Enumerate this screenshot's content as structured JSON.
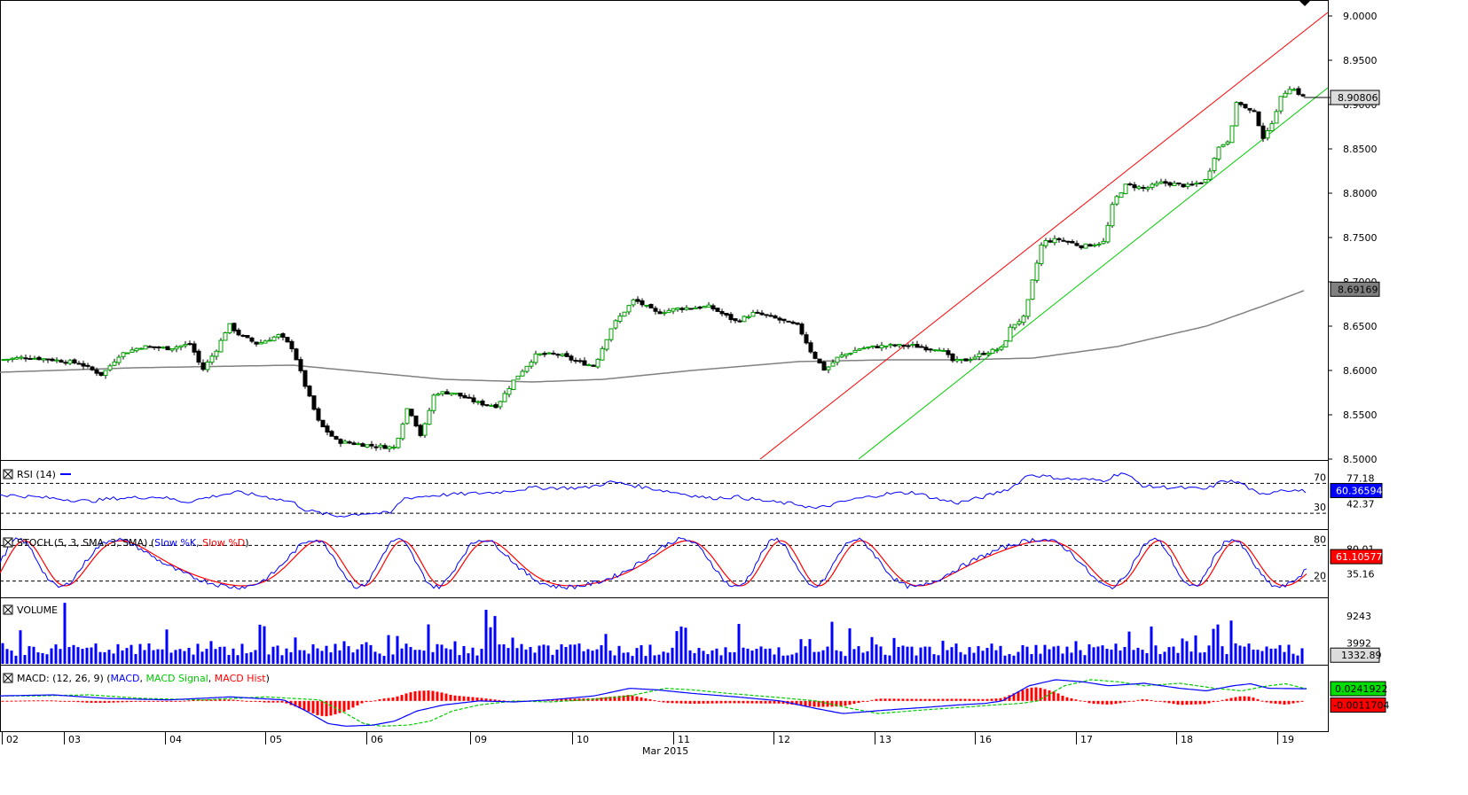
{
  "chart_data": {
    "type": "candlestick",
    "x_axis": {
      "ticks": [
        "02",
        "03",
        "04",
        "05",
        "06",
        "09",
        "10",
        "11",
        "12",
        "13",
        "16",
        "17",
        "18",
        "19"
      ],
      "month_label": "Mar 2015"
    },
    "price_panel": {
      "ylim": [
        8.5,
        9.0
      ],
      "tick_labels": [
        "9.0000",
        "8.9500",
        "8.9000",
        "8.8500",
        "8.8000",
        "8.7500",
        "8.7000",
        "8.6500",
        "8.6000",
        "8.5500",
        "8.5000"
      ],
      "last_price_tag": "8.90806",
      "ma_tag": "8.69169",
      "colors": {
        "up": "#00a000",
        "down": "#000000",
        "ma": "#808080",
        "channel_upper": "#ff0000",
        "channel_lower": "#00cc00"
      },
      "close_anchors": [
        [
          0,
          8.612
        ],
        [
          30,
          8.615
        ],
        [
          60,
          8.612
        ],
        [
          90,
          8.608
        ],
        [
          105,
          8.6
        ],
        [
          115,
          8.595
        ],
        [
          135,
          8.618
        ],
        [
          160,
          8.627
        ],
        [
          190,
          8.625
        ],
        [
          215,
          8.63
        ],
        [
          228,
          8.6
        ],
        [
          245,
          8.625
        ],
        [
          258,
          8.652
        ],
        [
          270,
          8.64
        ],
        [
          290,
          8.63
        ],
        [
          315,
          8.64
        ],
        [
          330,
          8.625
        ],
        [
          345,
          8.58
        ],
        [
          360,
          8.54
        ],
        [
          380,
          8.52
        ],
        [
          420,
          8.515
        ],
        [
          445,
          8.513
        ],
        [
          460,
          8.56
        ],
        [
          475,
          8.525
        ],
        [
          490,
          8.575
        ],
        [
          510,
          8.575
        ],
        [
          540,
          8.563
        ],
        [
          560,
          8.56
        ],
        [
          580,
          8.59
        ],
        [
          605,
          8.618
        ],
        [
          630,
          8.618
        ],
        [
          650,
          8.61
        ],
        [
          670,
          8.605
        ],
        [
          690,
          8.65
        ],
        [
          715,
          8.68
        ],
        [
          740,
          8.665
        ],
        [
          765,
          8.67
        ],
        [
          800,
          8.672
        ],
        [
          830,
          8.655
        ],
        [
          850,
          8.665
        ],
        [
          870,
          8.66
        ],
        [
          900,
          8.65
        ],
        [
          915,
          8.62
        ],
        [
          930,
          8.6
        ],
        [
          945,
          8.615
        ],
        [
          970,
          8.625
        ],
        [
          1000,
          8.628
        ],
        [
          1030,
          8.628
        ],
        [
          1045,
          8.625
        ],
        [
          1060,
          8.625
        ],
        [
          1075,
          8.61
        ],
        [
          1090,
          8.612
        ],
        [
          1110,
          8.62
        ],
        [
          1130,
          8.625
        ],
        [
          1140,
          8.65
        ],
        [
          1155,
          8.66
        ],
        [
          1165,
          8.705
        ],
        [
          1175,
          8.745
        ],
        [
          1195,
          8.748
        ],
        [
          1220,
          8.74
        ],
        [
          1245,
          8.745
        ],
        [
          1255,
          8.79
        ],
        [
          1270,
          8.81
        ],
        [
          1290,
          8.805
        ],
        [
          1310,
          8.812
        ],
        [
          1340,
          8.808
        ],
        [
          1360,
          8.815
        ],
        [
          1372,
          8.85
        ],
        [
          1385,
          8.86
        ],
        [
          1395,
          8.905
        ],
        [
          1405,
          8.895
        ],
        [
          1415,
          8.89
        ],
        [
          1425,
          8.86
        ],
        [
          1432,
          8.875
        ],
        [
          1445,
          8.91
        ],
        [
          1455,
          8.92
        ],
        [
          1470,
          8.908
        ]
      ],
      "ma_anchors": [
        [
          0,
          8.598
        ],
        [
          150,
          8.603
        ],
        [
          330,
          8.606
        ],
        [
          500,
          8.59
        ],
        [
          600,
          8.587
        ],
        [
          680,
          8.59
        ],
        [
          780,
          8.6
        ],
        [
          900,
          8.61
        ],
        [
          1000,
          8.612
        ],
        [
          1080,
          8.612
        ],
        [
          1165,
          8.614
        ],
        [
          1260,
          8.627
        ],
        [
          1360,
          8.65
        ],
        [
          1430,
          8.675
        ],
        [
          1475,
          8.692
        ],
        [
          1500,
          8.692
        ]
      ]
    },
    "rsi_panel": {
      "title": "RSI (14)",
      "levels": [
        70,
        30
      ],
      "level_labels": [
        "70",
        "30"
      ],
      "tick_labels": [
        "77.18",
        "42.37"
      ],
      "value_tag": "60.36594",
      "ylim": [
        10,
        100
      ],
      "anchors": [
        [
          0,
          55
        ],
        [
          60,
          50
        ],
        [
          100,
          46
        ],
        [
          130,
          50
        ],
        [
          180,
          52
        ],
        [
          210,
          45
        ],
        [
          250,
          55
        ],
        [
          270,
          58
        ],
        [
          300,
          52
        ],
        [
          330,
          45
        ],
        [
          345,
          34
        ],
        [
          380,
          26
        ],
        [
          410,
          30
        ],
        [
          440,
          30
        ],
        [
          455,
          50
        ],
        [
          490,
          54
        ],
        [
          560,
          58
        ],
        [
          600,
          64
        ],
        [
          660,
          64
        ],
        [
          690,
          72
        ],
        [
          720,
          66
        ],
        [
          760,
          58
        ],
        [
          800,
          50
        ],
        [
          830,
          52
        ],
        [
          870,
          45
        ],
        [
          900,
          42
        ],
        [
          920,
          36
        ],
        [
          960,
          48
        ],
        [
          1000,
          56
        ],
        [
          1030,
          58
        ],
        [
          1060,
          48
        ],
        [
          1080,
          44
        ],
        [
          1110,
          52
        ],
        [
          1140,
          64
        ],
        [
          1160,
          82
        ],
        [
          1200,
          76
        ],
        [
          1245,
          74
        ],
        [
          1265,
          85
        ],
        [
          1290,
          66
        ],
        [
          1330,
          64
        ],
        [
          1360,
          62
        ],
        [
          1380,
          74
        ],
        [
          1400,
          70
        ],
        [
          1420,
          54
        ],
        [
          1445,
          62
        ],
        [
          1475,
          59
        ]
      ]
    },
    "stoch_panel": {
      "title_prefix": "STOCH (5, 3, SMA, 3, SMA) (",
      "title_k": "Slow %K",
      "title_sep": ", ",
      "title_d": "Slow %D",
      "title_suffix": ")",
      "levels": [
        80,
        20
      ],
      "level_labels": [
        "80",
        "20"
      ],
      "tick_labels": [
        "80.01",
        "35.16"
      ],
      "value_tag": "61.10577",
      "ylim": [
        0,
        100
      ]
    },
    "volume_panel": {
      "title": "VOLUME",
      "tick_labels": [
        "9243",
        "3992"
      ],
      "value_tag": "1332.89",
      "max_value": 12000
    },
    "macd_panel": {
      "title_prefix": "MACD: (12, 26, 9) (",
      "title_macd": "MACD",
      "title_sep1": ", ",
      "title_signal": "MACD Signal",
      "title_sep2": ", ",
      "title_hist": "MACD Hist",
      "title_suffix": ")",
      "macd_tag": "0.0241922",
      "hist_tag": "-0.0011704",
      "ylim": [
        -0.06,
        0.07
      ],
      "anchors": [
        [
          0,
          0.01
        ],
        [
          60,
          0.012
        ],
        [
          120,
          0.005
        ],
        [
          190,
          0.002
        ],
        [
          260,
          0.008
        ],
        [
          320,
          0.002
        ],
        [
          345,
          -0.02
        ],
        [
          370,
          -0.045
        ],
        [
          390,
          -0.05
        ],
        [
          420,
          -0.048
        ],
        [
          445,
          -0.04
        ],
        [
          470,
          -0.02
        ],
        [
          500,
          -0.008
        ],
        [
          540,
          0.0
        ],
        [
          580,
          -0.002
        ],
        [
          620,
          0.002
        ],
        [
          670,
          0.01
        ],
        [
          710,
          0.025
        ],
        [
          740,
          0.022
        ],
        [
          780,
          0.015
        ],
        [
          830,
          0.008
        ],
        [
          880,
          0.0
        ],
        [
          920,
          -0.015
        ],
        [
          950,
          -0.025
        ],
        [
          1000,
          -0.018
        ],
        [
          1050,
          -0.012
        ],
        [
          1080,
          -0.008
        ],
        [
          1110,
          -0.005
        ],
        [
          1130,
          0.0
        ],
        [
          1160,
          0.03
        ],
        [
          1190,
          0.042
        ],
        [
          1220,
          0.038
        ],
        [
          1250,
          0.03
        ],
        [
          1290,
          0.035
        ],
        [
          1330,
          0.025
        ],
        [
          1360,
          0.02
        ],
        [
          1390,
          0.03
        ],
        [
          1410,
          0.034
        ],
        [
          1430,
          0.025
        ],
        [
          1475,
          0.024
        ]
      ]
    }
  }
}
